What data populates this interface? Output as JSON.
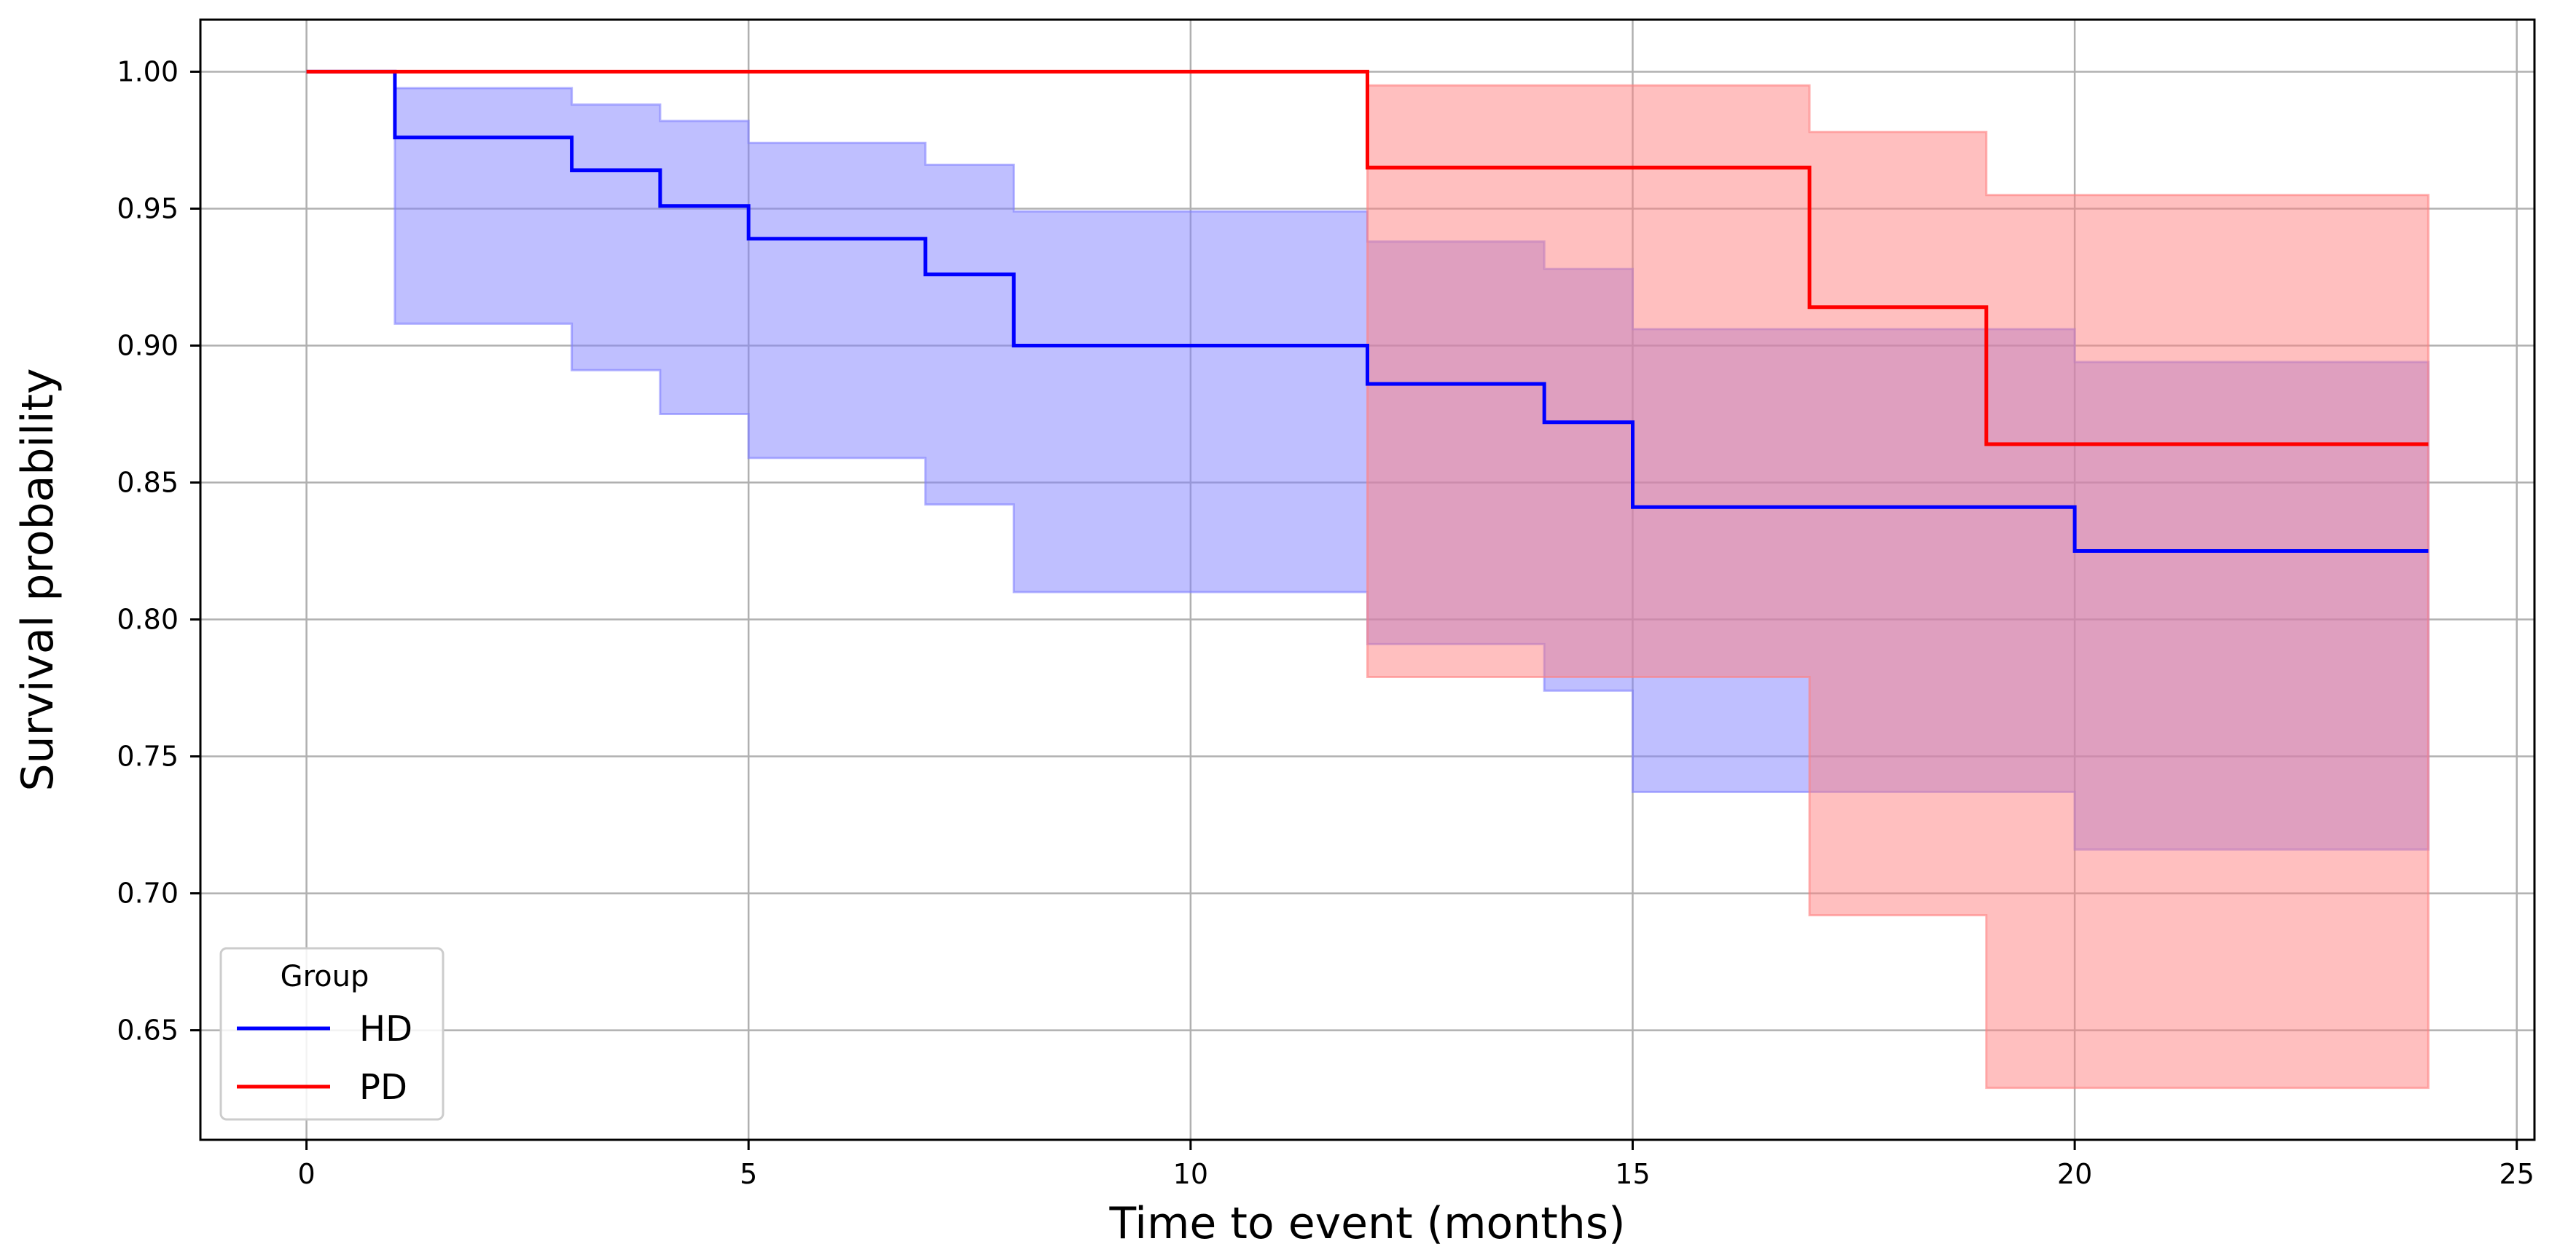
{
  "chart_data": {
    "type": "line",
    "subtype": "kaplan-meier step survival curves with confidence bands",
    "title": "",
    "xlabel": "Time to event (months)",
    "ylabel": "Survival probability",
    "xlim": [
      -1.2,
      25.2
    ],
    "ylim": [
      0.61,
      1.019
    ],
    "xticks": [
      0,
      5,
      10,
      15,
      20,
      25
    ],
    "yticks": [
      0.65,
      0.7,
      0.75,
      0.8,
      0.85,
      0.9,
      0.95,
      1.0
    ],
    "xtick_labels": [
      "0",
      "5",
      "10",
      "15",
      "20",
      "25"
    ],
    "ytick_labels": [
      "0.65",
      "0.70",
      "0.75",
      "0.80",
      "0.85",
      "0.90",
      "0.95",
      "1.00"
    ],
    "grid": true,
    "legend": {
      "title": "Group",
      "location": "lower-left",
      "entries": [
        "HD",
        "PD"
      ]
    },
    "series": [
      {
        "name": "HD",
        "color": "#0000ff",
        "band_color": "#8080ff",
        "times": [
          0,
          1,
          3,
          4,
          5,
          7,
          8,
          12,
          14,
          15,
          20,
          24
        ],
        "survival": [
          1.0,
          0.976,
          0.964,
          0.951,
          0.939,
          0.926,
          0.9,
          0.886,
          0.872,
          0.841,
          0.825,
          0.825
        ],
        "ci_lower": [
          1.0,
          0.908,
          0.891,
          0.875,
          0.859,
          0.842,
          0.81,
          0.791,
          0.774,
          0.737,
          0.716,
          0.716
        ],
        "ci_upper": [
          1.0,
          0.994,
          0.988,
          0.982,
          0.974,
          0.966,
          0.949,
          0.938,
          0.928,
          0.906,
          0.894,
          0.894
        ]
      },
      {
        "name": "PD",
        "color": "#ff0000",
        "band_color": "#ff8080",
        "times": [
          0,
          12,
          17,
          19,
          24
        ],
        "survival": [
          1.0,
          0.965,
          0.914,
          0.864,
          0.864
        ],
        "ci_lower": [
          1.0,
          0.779,
          0.692,
          0.629,
          0.629
        ],
        "ci_upper": [
          1.0,
          0.995,
          0.978,
          0.955,
          0.955
        ]
      }
    ]
  }
}
